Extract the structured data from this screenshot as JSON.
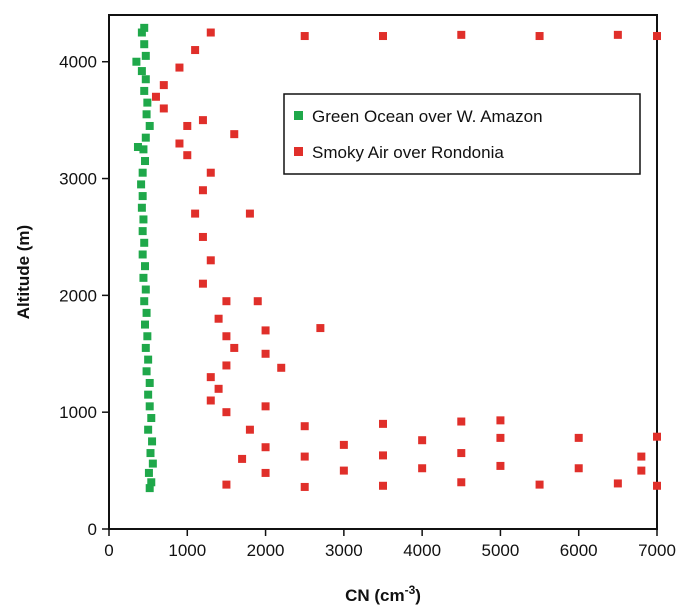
{
  "chart_data": {
    "type": "scatter",
    "xlabel": "CN (cm",
    "xlabel_sup": "-3",
    "xlabel_close": ")",
    "ylabel": "Altitude (m)",
    "xlim": [
      0,
      7000
    ],
    "ylim": [
      0,
      4400
    ],
    "xticks": [
      "0",
      "1000",
      "2000",
      "3000",
      "4000",
      "5000",
      "6000",
      "7000"
    ],
    "yticks": [
      "0",
      "1000",
      "2000",
      "3000",
      "4000"
    ],
    "grid": false,
    "legend_position": "top-right",
    "series": [
      {
        "name": "Green Ocean over W. Amazon",
        "color": "#1fa84a",
        "points": [
          [
            520,
            350
          ],
          [
            540,
            400
          ],
          [
            510,
            480
          ],
          [
            560,
            560
          ],
          [
            530,
            650
          ],
          [
            550,
            750
          ],
          [
            500,
            850
          ],
          [
            540,
            950
          ],
          [
            520,
            1050
          ],
          [
            500,
            1150
          ],
          [
            520,
            1250
          ],
          [
            480,
            1350
          ],
          [
            500,
            1450
          ],
          [
            470,
            1550
          ],
          [
            490,
            1650
          ],
          [
            460,
            1750
          ],
          [
            480,
            1850
          ],
          [
            450,
            1950
          ],
          [
            470,
            2050
          ],
          [
            440,
            2150
          ],
          [
            460,
            2250
          ],
          [
            430,
            2350
          ],
          [
            450,
            2450
          ],
          [
            430,
            2550
          ],
          [
            440,
            2650
          ],
          [
            420,
            2750
          ],
          [
            430,
            2850
          ],
          [
            410,
            2950
          ],
          [
            430,
            3050
          ],
          [
            460,
            3150
          ],
          [
            440,
            3250
          ],
          [
            370,
            3270
          ],
          [
            470,
            3350
          ],
          [
            520,
            3450
          ],
          [
            480,
            3550
          ],
          [
            490,
            3650
          ],
          [
            450,
            3750
          ],
          [
            470,
            3850
          ],
          [
            420,
            3920
          ],
          [
            350,
            4000
          ],
          [
            470,
            4050
          ],
          [
            450,
            4150
          ],
          [
            420,
            4250
          ],
          [
            450,
            4290
          ]
        ]
      },
      {
        "name": "Smoky Air over Rondonia",
        "color": "#e02f2a",
        "points": [
          [
            1500,
            380
          ],
          [
            2500,
            360
          ],
          [
            3500,
            370
          ],
          [
            4500,
            400
          ],
          [
            5500,
            380
          ],
          [
            6500,
            390
          ],
          [
            7000,
            370
          ],
          [
            2000,
            480
          ],
          [
            3000,
            500
          ],
          [
            4000,
            520
          ],
          [
            5000,
            540
          ],
          [
            6000,
            520
          ],
          [
            6800,
            500
          ],
          [
            1700,
            600
          ],
          [
            2500,
            620
          ],
          [
            3500,
            630
          ],
          [
            4500,
            650
          ],
          [
            6800,
            620
          ],
          [
            2000,
            700
          ],
          [
            3000,
            720
          ],
          [
            4000,
            760
          ],
          [
            5000,
            780
          ],
          [
            6000,
            780
          ],
          [
            7000,
            790
          ],
          [
            1800,
            850
          ],
          [
            2500,
            880
          ],
          [
            3500,
            900
          ],
          [
            4500,
            920
          ],
          [
            5000,
            930
          ],
          [
            1500,
            1000
          ],
          [
            2000,
            1050
          ],
          [
            1300,
            1100
          ],
          [
            1400,
            1200
          ],
          [
            1300,
            1300
          ],
          [
            1500,
            1400
          ],
          [
            2200,
            1380
          ],
          [
            1600,
            1550
          ],
          [
            2000,
            1500
          ],
          [
            1500,
            1650
          ],
          [
            2000,
            1700
          ],
          [
            2700,
            1720
          ],
          [
            1400,
            1800
          ],
          [
            1500,
            1950
          ],
          [
            1900,
            1950
          ],
          [
            1200,
            2100
          ],
          [
            1300,
            2300
          ],
          [
            1200,
            2500
          ],
          [
            1100,
            2700
          ],
          [
            1800,
            2700
          ],
          [
            1200,
            2900
          ],
          [
            1300,
            3050
          ],
          [
            1000,
            3200
          ],
          [
            900,
            3300
          ],
          [
            1600,
            3380
          ],
          [
            1000,
            3450
          ],
          [
            1200,
            3500
          ],
          [
            700,
            3600
          ],
          [
            600,
            3700
          ],
          [
            700,
            3800
          ],
          [
            900,
            3950
          ],
          [
            1100,
            4100
          ],
          [
            1300,
            4250
          ],
          [
            2500,
            4220
          ],
          [
            3500,
            4220
          ],
          [
            4500,
            4230
          ],
          [
            5500,
            4220
          ],
          [
            6500,
            4230
          ],
          [
            7000,
            4220
          ]
        ]
      }
    ]
  }
}
